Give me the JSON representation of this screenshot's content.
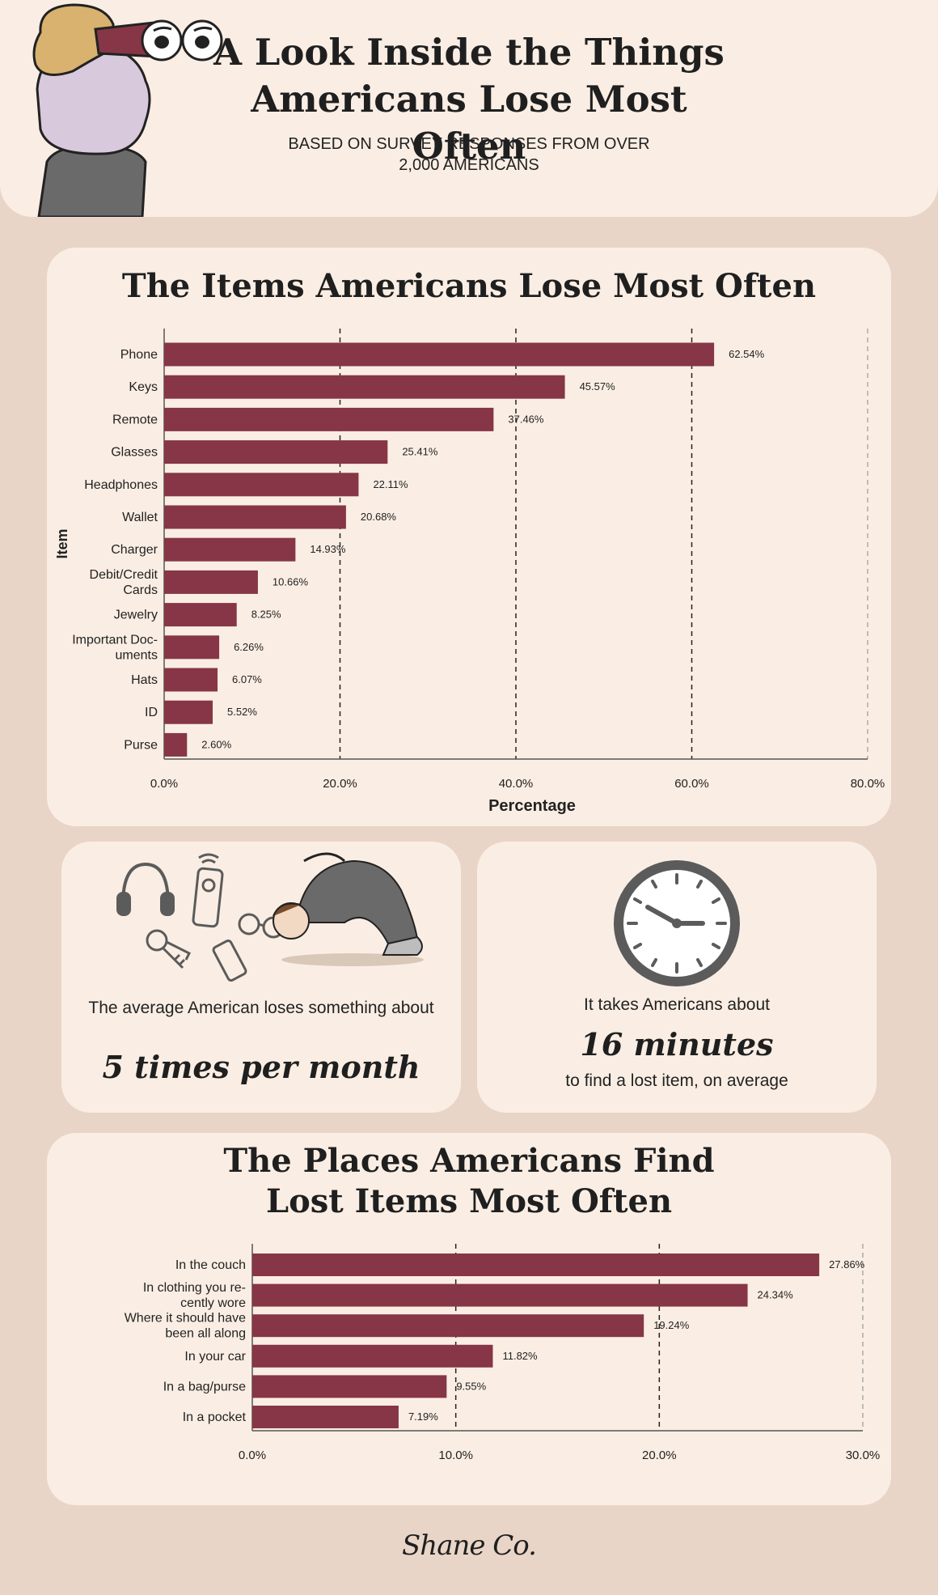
{
  "header": {
    "title": "A Look Inside the Things\nAmericans Lose Most Often",
    "subtitle": "BASED ON SURVEY RESPONSES FROM OVER\n2,000 AMERICANS"
  },
  "colors": {
    "background": "#e9d5c7",
    "card": "#faeee4",
    "bar": "#863646",
    "text": "#1f1f1f",
    "icon": "#5b5b5b"
  },
  "stats": {
    "frequency_text": "The average American loses something about",
    "frequency_value": "5 times per month",
    "time_text_before": "It takes Americans about",
    "time_value": "16 minutes",
    "time_text_after": "to find a lost item, on average"
  },
  "icons": [
    "binoculars-woman-illustration",
    "headphones-icon",
    "remote-icon",
    "keys-icon",
    "phone-icon",
    "glasses-icon",
    "searching-person-illustration",
    "clock-icon"
  ],
  "brand": "Shane Co.",
  "chart_data": [
    {
      "type": "bar",
      "orientation": "horizontal",
      "title": "The Items Americans Lose Most Often",
      "xlabel": "Percentage",
      "ylabel": "Item",
      "categories": [
        "Phone",
        "Keys",
        "Remote",
        "Glasses",
        "Headphones",
        "Wallet",
        "Charger",
        "Debit/Credit Cards",
        "Jewelry",
        "Important Documents",
        "Hats",
        "ID",
        "Purse"
      ],
      "category_lines": [
        [
          "Phone"
        ],
        [
          "Keys"
        ],
        [
          "Remote"
        ],
        [
          "Glasses"
        ],
        [
          "Headphones"
        ],
        [
          "Wallet"
        ],
        [
          "Charger"
        ],
        [
          "Debit/Credit",
          "Cards"
        ],
        [
          "Jewelry"
        ],
        [
          "Important Doc-",
          "uments"
        ],
        [
          "Hats"
        ],
        [
          "ID"
        ],
        [
          "Purse"
        ]
      ],
      "values": [
        62.54,
        45.57,
        37.46,
        25.41,
        22.11,
        20.68,
        14.93,
        10.66,
        8.25,
        6.26,
        6.07,
        5.52,
        2.6
      ],
      "value_labels": [
        "62.54%",
        "45.57%",
        "37.46%",
        "25.41%",
        "22.11%",
        "20.68%",
        "14.93%",
        "10.66%",
        "8.25%",
        "6.26%",
        "6.07%",
        "5.52%",
        "2.60%"
      ],
      "xlim": [
        0,
        80
      ],
      "xticks": [
        0,
        20,
        40,
        60,
        80
      ],
      "xtick_labels": [
        "0.0%",
        "20.0%",
        "40.0%",
        "60.0%",
        "80.0%"
      ],
      "grid": "vertical-dashed"
    },
    {
      "type": "bar",
      "orientation": "horizontal",
      "title": "The Places Americans Find\nLost Items Most Often",
      "xlabel": "",
      "ylabel": "",
      "categories": [
        "In the couch",
        "In clothing you recently wore",
        "Where it should have been all along",
        "In your car",
        "In a bag/purse",
        "In a pocket"
      ],
      "category_lines": [
        [
          "In the couch"
        ],
        [
          "In clothing you re-",
          "cently wore"
        ],
        [
          "Where it should have",
          "been all along"
        ],
        [
          "In your car"
        ],
        [
          "In a bag/purse"
        ],
        [
          "In a pocket"
        ]
      ],
      "values": [
        27.86,
        24.34,
        19.24,
        11.82,
        9.55,
        7.19
      ],
      "value_labels": [
        "27.86%",
        "24.34%",
        "19.24%",
        "11.82%",
        "9.55%",
        "7.19%"
      ],
      "xlim": [
        0,
        30
      ],
      "xticks": [
        0,
        10,
        20,
        30
      ],
      "xtick_labels": [
        "0.0%",
        "10.0%",
        "20.0%",
        "30.0%"
      ],
      "grid": "vertical-dashed"
    }
  ]
}
